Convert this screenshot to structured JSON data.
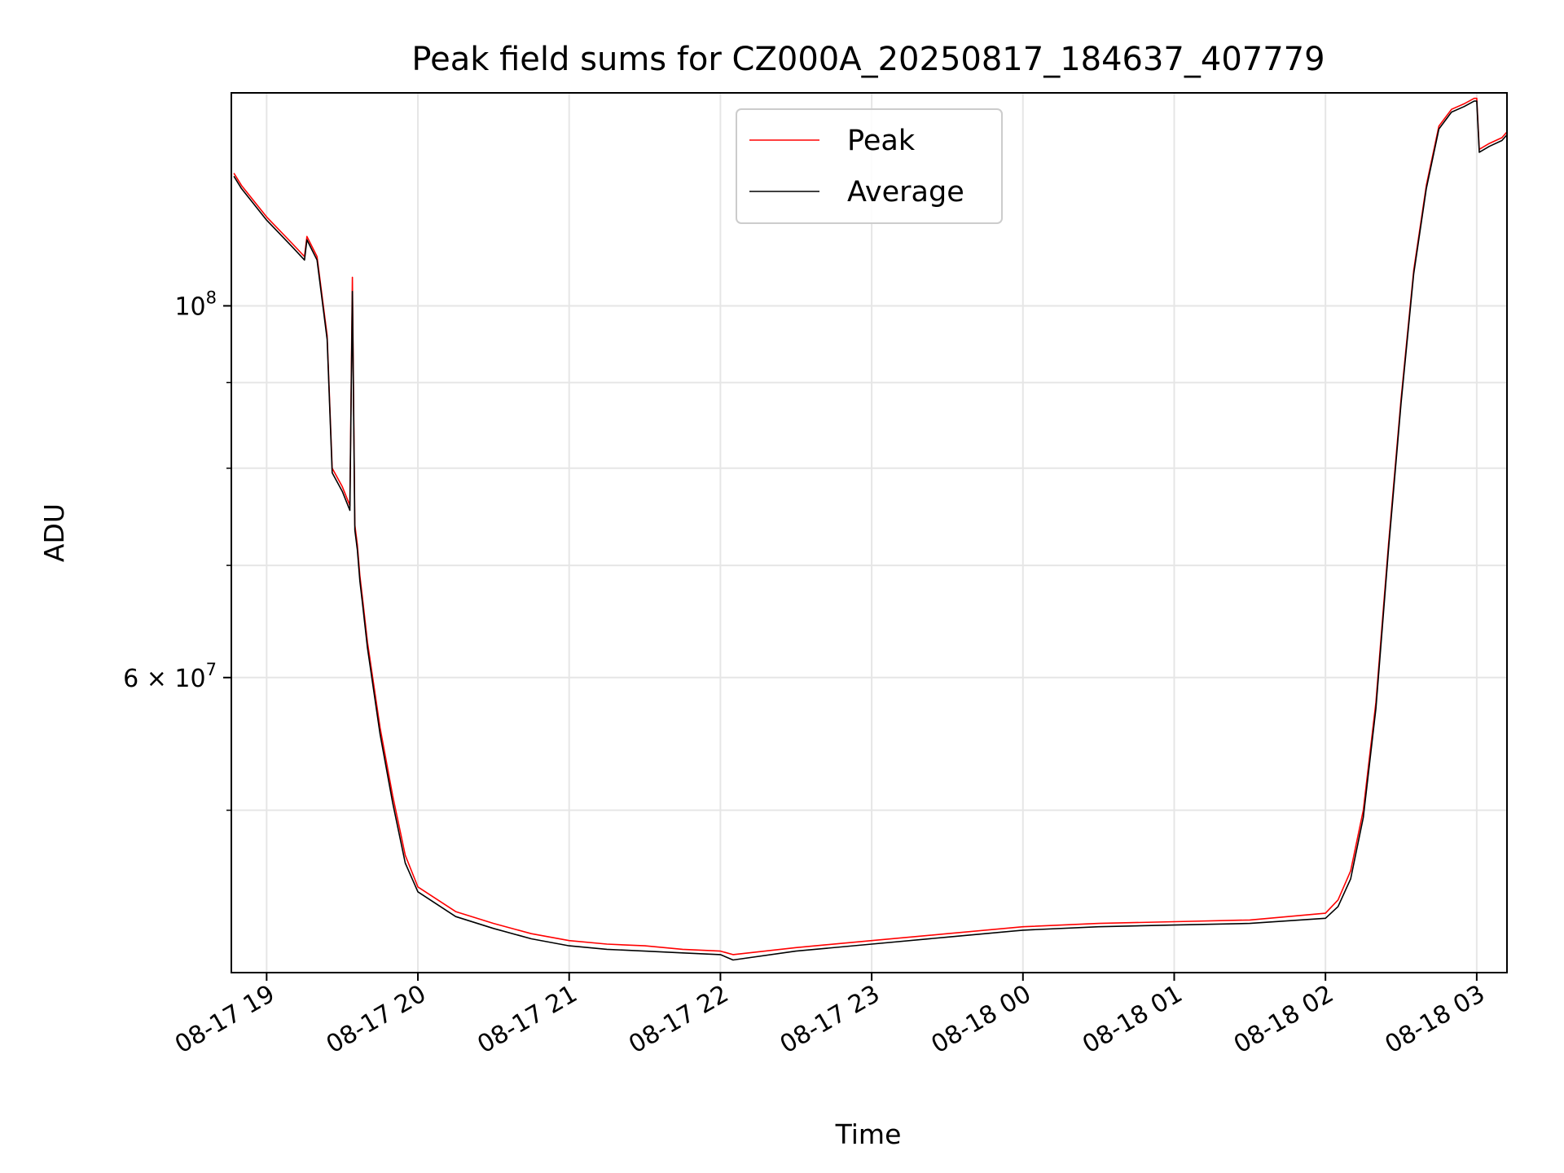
{
  "chart_data": {
    "type": "line",
    "title": "Peak field sums for CZ000A_20250817_184637_407779",
    "xlabel": "Time",
    "ylabel": "ADU",
    "yscale": "log",
    "ylim": [
      40000000,
      134000000
    ],
    "xlim": [
      "2025-08-17 18:46",
      "2025-08-18 03:12"
    ],
    "x_tick_labels": [
      "08-17 19",
      "08-17 20",
      "08-17 21",
      "08-17 22",
      "08-17 23",
      "08-18 00",
      "08-18 01",
      "08-18 02",
      "08-18 03"
    ],
    "x_ticks": [
      "2025-08-17 19:00",
      "2025-08-17 20:00",
      "2025-08-17 21:00",
      "2025-08-17 22:00",
      "2025-08-17 23:00",
      "2025-08-18 00:00",
      "2025-08-18 01:00",
      "2025-08-18 02:00",
      "2025-08-18 03:00"
    ],
    "y_major_ticks": [
      {
        "value": 100000000,
        "label": "10^8"
      },
      {
        "value": 60000000,
        "label": "6×10^7"
      }
    ],
    "y_minor_ticks": [
      50000000,
      70000000,
      80000000,
      90000000
    ],
    "grid": true,
    "legend_position": "upper center",
    "series": [
      {
        "name": "Peak",
        "color": "#ff0000",
        "x": [
          "2025-08-17 18:47",
          "2025-08-17 18:50",
          "2025-08-17 19:00",
          "2025-08-17 19:10",
          "2025-08-17 19:15",
          "2025-08-17 19:16",
          "2025-08-17 19:20",
          "2025-08-17 19:24",
          "2025-08-17 19:26",
          "2025-08-17 19:30",
          "2025-08-17 19:33",
          "2025-08-17 19:34",
          "2025-08-17 19:35",
          "2025-08-17 19:36",
          "2025-08-17 19:37",
          "2025-08-17 19:38",
          "2025-08-17 19:40",
          "2025-08-17 19:45",
          "2025-08-17 19:50",
          "2025-08-17 19:55",
          "2025-08-17 20:00",
          "2025-08-17 20:15",
          "2025-08-17 20:30",
          "2025-08-17 20:45",
          "2025-08-17 21:00",
          "2025-08-17 21:15",
          "2025-08-17 21:30",
          "2025-08-17 21:45",
          "2025-08-17 22:00",
          "2025-08-17 22:05",
          "2025-08-17 22:30",
          "2025-08-17 23:00",
          "2025-08-17 23:30",
          "2025-08-18 00:00",
          "2025-08-18 00:30",
          "2025-08-18 01:00",
          "2025-08-18 01:30",
          "2025-08-18 02:00",
          "2025-08-18 02:05",
          "2025-08-18 02:10",
          "2025-08-18 02:15",
          "2025-08-18 02:20",
          "2025-08-18 02:25",
          "2025-08-18 02:30",
          "2025-08-18 02:35",
          "2025-08-18 02:40",
          "2025-08-18 02:45",
          "2025-08-18 02:50",
          "2025-08-18 02:55",
          "2025-08-18 02:59",
          "2025-08-18 03:00",
          "2025-08-18 03:01",
          "2025-08-18 03:05",
          "2025-08-18 03:10",
          "2025-08-18 03:12"
        ],
        "y": [
          120000000,
          118000000,
          113000000,
          109000000,
          107000000,
          110000000,
          107000000,
          96000000,
          80000000,
          78000000,
          76000000,
          104000000,
          74000000,
          72000000,
          69000000,
          67000000,
          63000000,
          56000000,
          51000000,
          47000000,
          45000000,
          43500000,
          42800000,
          42200000,
          41800000,
          41600000,
          41500000,
          41300000,
          41200000,
          41000000,
          41400000,
          41800000,
          42200000,
          42600000,
          42800000,
          42900000,
          43000000,
          43400000,
          44200000,
          46000000,
          50000000,
          58000000,
          72000000,
          88000000,
          105000000,
          118000000,
          128000000,
          131000000,
          132000000,
          133000000,
          133000000,
          124000000,
          125000000,
          126000000,
          127000000
        ]
      },
      {
        "name": "Average",
        "color": "#000000",
        "x": [
          "2025-08-17 18:47",
          "2025-08-17 18:50",
          "2025-08-17 19:00",
          "2025-08-17 19:10",
          "2025-08-17 19:15",
          "2025-08-17 19:16",
          "2025-08-17 19:20",
          "2025-08-17 19:24",
          "2025-08-17 19:26",
          "2025-08-17 19:30",
          "2025-08-17 19:33",
          "2025-08-17 19:34",
          "2025-08-17 19:35",
          "2025-08-17 19:36",
          "2025-08-17 19:37",
          "2025-08-17 19:38",
          "2025-08-17 19:40",
          "2025-08-17 19:45",
          "2025-08-17 19:50",
          "2025-08-17 19:55",
          "2025-08-17 20:00",
          "2025-08-17 20:15",
          "2025-08-17 20:30",
          "2025-08-17 20:45",
          "2025-08-17 21:00",
          "2025-08-17 21:15",
          "2025-08-17 21:30",
          "2025-08-17 21:45",
          "2025-08-17 22:00",
          "2025-08-17 22:05",
          "2025-08-17 22:30",
          "2025-08-17 23:00",
          "2025-08-17 23:30",
          "2025-08-18 00:00",
          "2025-08-18 00:30",
          "2025-08-18 01:00",
          "2025-08-18 01:30",
          "2025-08-18 02:00",
          "2025-08-18 02:05",
          "2025-08-18 02:10",
          "2025-08-18 02:15",
          "2025-08-18 02:20",
          "2025-08-18 02:25",
          "2025-08-18 02:30",
          "2025-08-18 02:35",
          "2025-08-18 02:40",
          "2025-08-18 02:45",
          "2025-08-18 02:50",
          "2025-08-18 02:55",
          "2025-08-18 02:59",
          "2025-08-18 03:00",
          "2025-08-18 03:01",
          "2025-08-18 03:05",
          "2025-08-18 03:10",
          "2025-08-18 03:12"
        ],
        "y": [
          119500000,
          117500000,
          112500000,
          108500000,
          106500000,
          109500000,
          106500000,
          95500000,
          79500000,
          77500000,
          75500000,
          102000000,
          73500000,
          71500000,
          68500000,
          66500000,
          62500000,
          55500000,
          50500000,
          46500000,
          44700000,
          43200000,
          42500000,
          41900000,
          41500000,
          41300000,
          41200000,
          41100000,
          41000000,
          40700000,
          41200000,
          41600000,
          42000000,
          42400000,
          42600000,
          42700000,
          42800000,
          43100000,
          43800000,
          45500000,
          49500000,
          57500000,
          71500000,
          87500000,
          104500000,
          117500000,
          127500000,
          130500000,
          131500000,
          132500000,
          132500000,
          123500000,
          124500000,
          125500000,
          126500000
        ]
      }
    ]
  }
}
